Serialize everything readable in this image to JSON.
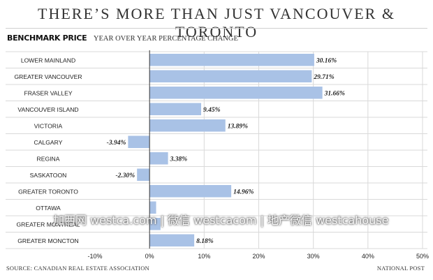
{
  "header": {
    "title": "THERE’S MORE THAN JUST VANCOUVER & TORONTO",
    "benchmark": "BENCHMARK PRICE",
    "subtitle": "YEAR OVER YEAR PERCENTAGE CHANGE"
  },
  "footer": {
    "source": "SOURCE: CANADIAN REAL ESTATE ASSOCIATION",
    "credit": "NATIONAL POST"
  },
  "watermark": "加西网 westca.com | 微信 westcacom | 地产微信 westcahouse",
  "colors": {
    "bar": "#a9c2e6",
    "grid": "#d9d9d9",
    "text": "#222222"
  },
  "chart_data": {
    "type": "bar",
    "orientation": "horizontal",
    "categories": [
      "LOWER MAINLAND",
      "GREATER VANCOUVER",
      "FRASER VALLEY",
      "VANCOUVER ISLAND",
      "VICTORIA",
      "CALGARY",
      "REGINA",
      "SASKATOON",
      "GREATER TORONTO",
      "OTTAWA",
      "GREATER MONTREAL",
      "GREATER MONCTON"
    ],
    "values": [
      30.16,
      29.71,
      31.66,
      9.45,
      13.89,
      -3.94,
      3.38,
      -2.3,
      14.96,
      1.2,
      2.0,
      8.18
    ],
    "value_labels": [
      "30.16%",
      "29.71%",
      "31.66%",
      "9.45%",
      "13.89%",
      "-3.94%",
      "3.38%",
      "-2.30%",
      "14.96%",
      "",
      "",
      "8.18%"
    ],
    "xticks": [
      "-10%",
      "0%",
      "10%",
      "20%",
      "30%",
      "40%",
      "50%"
    ],
    "xtick_values": [
      -10,
      0,
      10,
      20,
      30,
      40,
      50
    ],
    "xlim": [
      -10,
      50
    ],
    "grid": true
  }
}
